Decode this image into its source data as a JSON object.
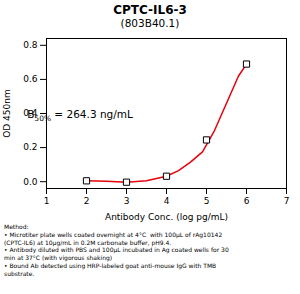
{
  "chart_data": {
    "type": "line",
    "title": "CPTC-IL6-3",
    "subtitle": "(803B40.1)",
    "xlabel": "Antibody Conc. (log pg/mL)",
    "ylabel": "OD 450nm",
    "xlim": [
      1,
      7
    ],
    "ylim": [
      -0.04,
      0.84
    ],
    "xticks": [
      1,
      2,
      3,
      4,
      5,
      6,
      7
    ],
    "yticks": [
      {
        "value": 0.0,
        "label": "0.0"
      },
      0.2,
      0.4,
      0.6,
      0.8
    ],
    "grid": false,
    "series": [
      {
        "type": "line",
        "color": "#e8000d",
        "x": [
          2.0,
          2.5,
          3.0,
          3.5,
          4.0,
          4.3,
          4.6,
          4.9,
          5.2,
          5.5,
          5.8,
          6.0
        ],
        "values": [
          0.005,
          0.003,
          -0.003,
          0.005,
          0.032,
          0.065,
          0.115,
          0.175,
          0.3,
          0.46,
          0.62,
          0.69
        ]
      },
      {
        "type": "scatter",
        "marker": "square",
        "color": "#000000",
        "x": [
          2,
          3,
          4,
          5,
          6
        ],
        "values": [
          0.005,
          -0.003,
          0.032,
          0.245,
          0.69
        ]
      }
    ],
    "annotations": [
      {
        "x": 1.85,
        "y": 0.37,
        "text": "B50% = 264.3 ng/mL",
        "subscript": "50%"
      }
    ],
    "caption": "Method:\n• Microtiter plate wells coated overnight at 4°C  with 100μL of rAg10142\n(CPTC-IL6) at 10μg/mL in 0.2M carbonate buffer, pH9.4.\n• Antibody diluted with PBS and 100μL incubated in Ag coated wells for 30\nmin at 37°C (with vigorous shaking)\n• Bound Ab detected using HRP-labeled goat anti-mouse IgG with TMB\nsubstrate."
  }
}
